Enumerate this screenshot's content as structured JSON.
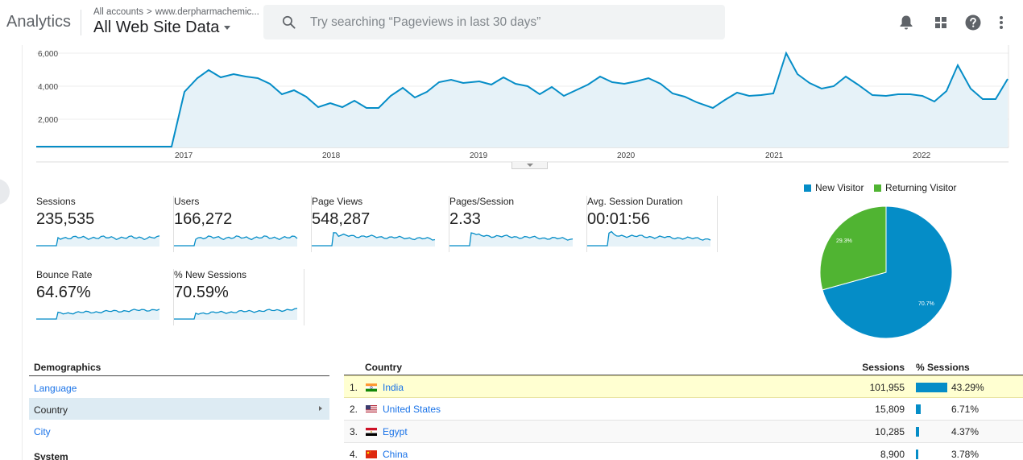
{
  "header": {
    "app_title": "Analytics",
    "breadcrumb_account": "All accounts",
    "breadcrumb_chevron": ">",
    "breadcrumb_property": "www.derpharmachemic...",
    "view_name": "All Web Site Data",
    "search_placeholder": "Try searching “Pageviews in last 30 days”",
    "icons": [
      "bell-icon",
      "apps-grid-icon",
      "help-icon",
      "more-vert-icon"
    ]
  },
  "timeline": {
    "y_ticks": [
      "6,000",
      "4,000",
      "2,000"
    ],
    "x_ticks": [
      "2017",
      "2018",
      "2019",
      "2020",
      "2021",
      "2022"
    ],
    "line_color": "#058dc7",
    "fill_color": "#e6f2f8"
  },
  "metrics": [
    {
      "label": "Sessions",
      "value": "235,535"
    },
    {
      "label": "Users",
      "value": "166,272"
    },
    {
      "label": "Page Views",
      "value": "548,287"
    },
    {
      "label": "Pages/Session",
      "value": "2.33"
    },
    {
      "label": "Avg. Session Duration",
      "value": "00:01:56"
    },
    {
      "label": "Bounce Rate",
      "value": "64.67%"
    },
    {
      "label": "% New Sessions",
      "value": "70.59%"
    }
  ],
  "pie": {
    "legend": [
      {
        "label": "New Visitor",
        "color": "#058dc7"
      },
      {
        "label": "Returning Visitor",
        "color": "#50b432"
      }
    ],
    "slices": [
      {
        "label": "70.7%",
        "value": 70.7,
        "color": "#058dc7"
      },
      {
        "label": "29.3%",
        "value": 29.3,
        "color": "#50b432"
      }
    ]
  },
  "demographics": {
    "title": "Demographics",
    "items": [
      "Language",
      "Country",
      "City"
    ],
    "active": "Country",
    "section2": "System"
  },
  "country_table": {
    "headers": {
      "country": "Country",
      "sessions": "Sessions",
      "pct_sessions": "% Sessions"
    },
    "bar_color": "#058dc7",
    "rows": [
      {
        "rank": "1.",
        "country": "India",
        "sessions": "101,955",
        "pct": "43.29%",
        "pct_value": 43.29
      },
      {
        "rank": "2.",
        "country": "United States",
        "sessions": "15,809",
        "pct": "6.71%",
        "pct_value": 6.71
      },
      {
        "rank": "3.",
        "country": "Egypt",
        "sessions": "10,285",
        "pct": "4.37%",
        "pct_value": 4.37
      },
      {
        "rank": "4.",
        "country": "China",
        "sessions": "8,900",
        "pct": "3.78%",
        "pct_value": 3.78
      }
    ]
  }
}
